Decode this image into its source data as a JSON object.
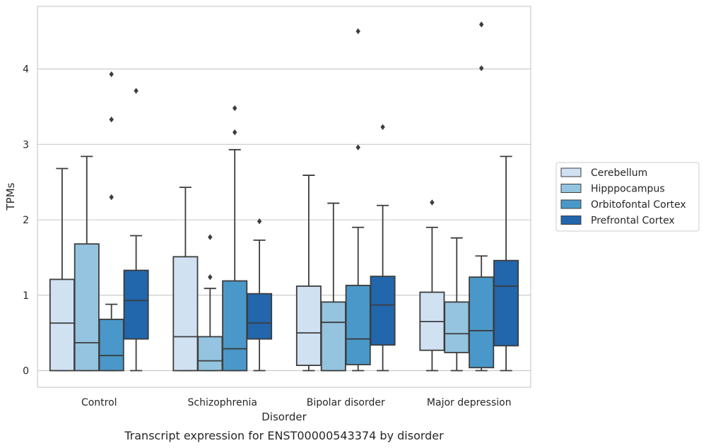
{
  "chart_data": {
    "type": "box",
    "xlabel": "Disorder",
    "ylabel": "TPMs",
    "caption": "Transcript expression for ENST00000543374 by disorder",
    "categories": [
      "Control",
      "Schizophrenia",
      "Bipolar disorder",
      "Major depression"
    ],
    "ylim": [
      -0.22,
      4.83
    ],
    "yticks": [
      0,
      1,
      2,
      3,
      4
    ],
    "grid": "horizontal",
    "legend_position": "right",
    "series": [
      {
        "name": "Cerebellum",
        "color": "#d0e1f2",
        "boxes": [
          {
            "whislo": 0,
            "q1": 0,
            "med": 0.63,
            "q3": 1.21,
            "whishi": 2.68,
            "fliers": []
          },
          {
            "whislo": 0,
            "q1": 0,
            "med": 0.45,
            "q3": 1.51,
            "whishi": 2.43,
            "fliers": []
          },
          {
            "whislo": 0,
            "q1": 0.07,
            "med": 0.5,
            "q3": 1.12,
            "whishi": 2.59,
            "fliers": []
          },
          {
            "whislo": 0,
            "q1": 0.27,
            "med": 0.65,
            "q3": 1.04,
            "whishi": 1.9,
            "fliers": [
              2.23
            ]
          }
        ]
      },
      {
        "name": "Hipppocampus",
        "color": "#94c4df",
        "boxes": [
          {
            "whislo": 0,
            "q1": 0,
            "med": 0.37,
            "q3": 1.68,
            "whishi": 2.84,
            "fliers": []
          },
          {
            "whislo": 0,
            "q1": 0,
            "med": 0.13,
            "q3": 0.45,
            "whishi": 1.09,
            "fliers": [
              1.77,
              1.24
            ]
          },
          {
            "whislo": 0,
            "q1": 0,
            "med": 0.64,
            "q3": 0.91,
            "whishi": 2.22,
            "fliers": []
          },
          {
            "whislo": 0,
            "q1": 0.24,
            "med": 0.49,
            "q3": 0.91,
            "whishi": 1.76,
            "fliers": []
          }
        ]
      },
      {
        "name": "Orbitofontal Cortex",
        "color": "#4a98c9",
        "boxes": [
          {
            "whislo": 0,
            "q1": 0,
            "med": 0.2,
            "q3": 0.68,
            "whishi": 0.88,
            "fliers": [
              2.3,
              3.33,
              3.93
            ]
          },
          {
            "whislo": 0,
            "q1": 0,
            "med": 0.29,
            "q3": 1.19,
            "whishi": 2.93,
            "fliers": [
              3.16,
              3.48
            ]
          },
          {
            "whislo": 0,
            "q1": 0.08,
            "med": 0.42,
            "q3": 1.13,
            "whishi": 1.9,
            "fliers": [
              2.96,
              4.5
            ]
          },
          {
            "whislo": 0,
            "q1": 0.04,
            "med": 0.53,
            "q3": 1.24,
            "whishi": 1.52,
            "fliers": [
              4.01,
              4.59
            ]
          }
        ]
      },
      {
        "name": "Prefrontal Cortex",
        "color": "#2266ac",
        "boxes": [
          {
            "whislo": 0,
            "q1": 0.42,
            "med": 0.93,
            "q3": 1.33,
            "whishi": 1.79,
            "fliers": [
              3.71
            ]
          },
          {
            "whislo": 0,
            "q1": 0.42,
            "med": 0.63,
            "q3": 1.02,
            "whishi": 1.73,
            "fliers": [
              1.98
            ]
          },
          {
            "whislo": 0,
            "q1": 0.34,
            "med": 0.87,
            "q3": 1.25,
            "whishi": 2.19,
            "fliers": [
              3.23
            ]
          },
          {
            "whislo": 0,
            "q1": 0.33,
            "med": 1.12,
            "q3": 1.46,
            "whishi": 2.84,
            "fliers": []
          }
        ]
      }
    ]
  }
}
